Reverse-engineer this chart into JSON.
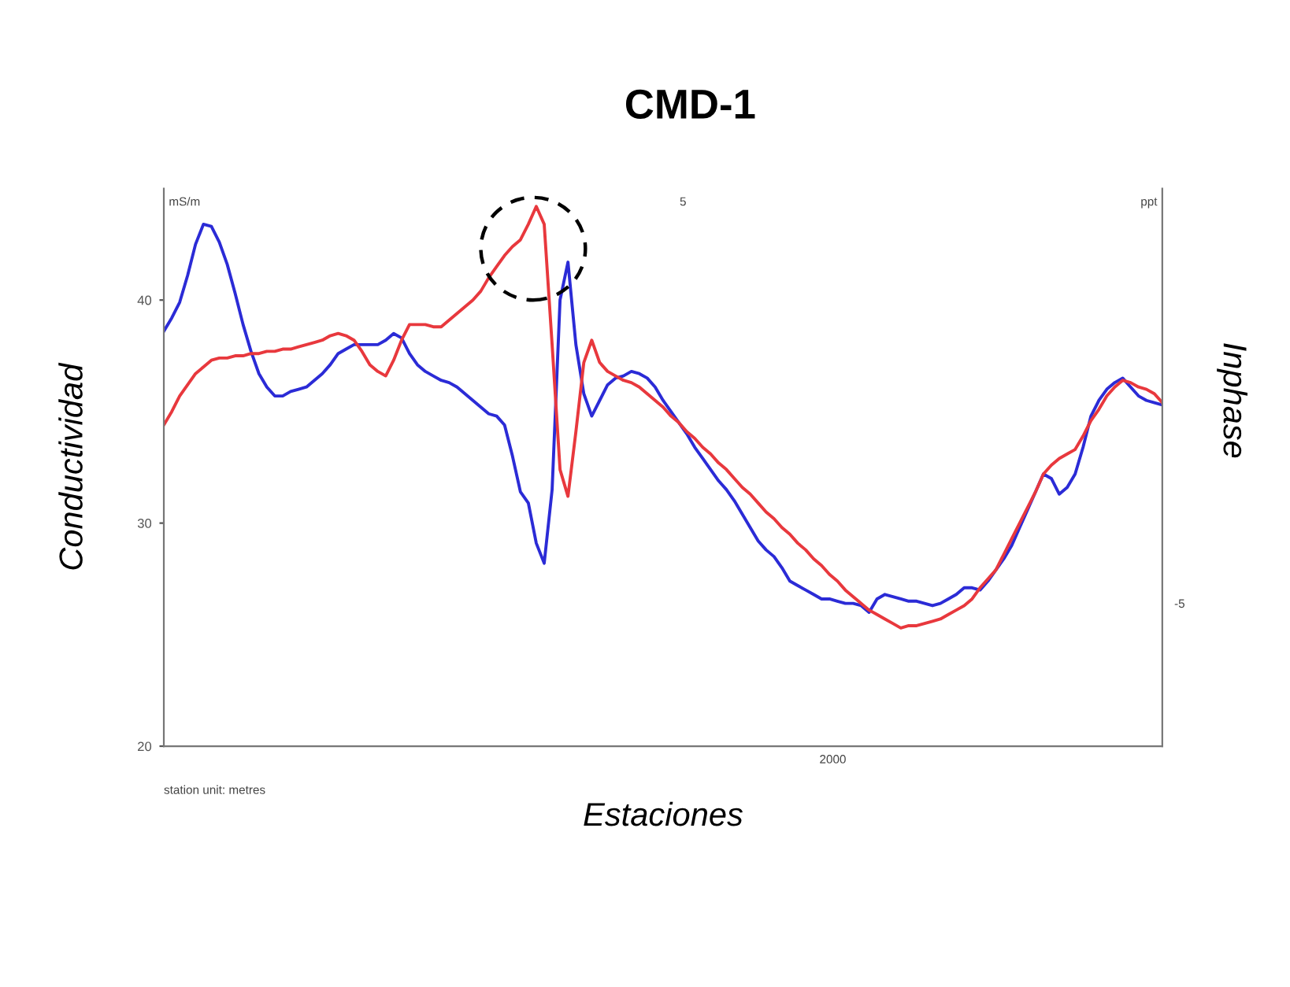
{
  "chart_data": {
    "type": "line",
    "title": "CMD-1",
    "xlabel": "Estaciones",
    "ylabel": "Conductividad",
    "y2label": "Inphase",
    "annotations": [
      "mS/m",
      "ppt",
      "5",
      "station unit: metres",
      "2000",
      "-5"
    ],
    "categories": [
      null,
      null,
      null,
      null,
      null,
      null,
      null,
      null,
      null,
      null,
      null,
      null,
      null,
      null,
      null,
      null,
      null,
      null,
      null,
      null,
      null,
      null,
      null,
      null,
      null,
      null,
      null,
      null,
      null,
      null,
      null,
      null,
      null,
      null,
      null,
      null,
      null,
      null,
      null,
      null,
      null,
      null,
      null,
      null,
      null,
      null,
      null,
      null,
      null,
      null,
      null,
      null,
      null,
      null,
      null,
      null,
      null,
      null,
      null,
      null,
      null,
      null,
      null,
      null,
      null,
      null,
      null,
      null,
      null,
      null,
      null,
      null,
      null,
      null,
      null,
      null,
      null,
      null,
      null,
      null,
      null,
      null,
      null,
      null,
      null,
      null,
      null,
      null,
      null,
      null,
      null,
      null,
      null,
      null,
      null,
      null,
      null,
      null,
      null,
      null,
      null,
      null,
      null,
      null,
      null,
      null,
      null,
      null,
      null,
      null,
      null,
      null,
      null,
      null,
      null,
      null,
      null,
      null,
      null,
      null,
      null,
      null,
      null,
      null,
      null,
      null,
      null
    ],
    "ylim": [
      20,
      45
    ],
    "yticks": [
      20,
      30,
      40
    ],
    "grid": false,
    "line_style": "solid",
    "series": [
      {
        "color": "#2b2bd6",
        "values": [
          38.6,
          39.2,
          39.9,
          41.1,
          42.5,
          43.4,
          43.3,
          42.6,
          41.6,
          40.3,
          38.9,
          37.7,
          36.7,
          36.1,
          35.7,
          35.7,
          35.9,
          36.0,
          36.1,
          36.4,
          36.7,
          37.1,
          37.6,
          37.8,
          38.0,
          38.0,
          38.0,
          38.0,
          38.2,
          38.5,
          38.3,
          37.6,
          37.1,
          36.8,
          36.6,
          36.4,
          36.3,
          36.1,
          35.8,
          35.5,
          35.2,
          34.9,
          34.8,
          34.4,
          33.0,
          31.4,
          30.9,
          29.1,
          28.2,
          31.5,
          40.0,
          41.7,
          38.0,
          35.8,
          34.8,
          35.5,
          36.2,
          36.5,
          36.6,
          36.8,
          36.7,
          36.5,
          36.1,
          35.5,
          35.0,
          34.5,
          34.0,
          33.4,
          32.9,
          32.4,
          31.9,
          31.5,
          31.0,
          30.4,
          29.8,
          29.2,
          28.8,
          28.5,
          28.0,
          27.4,
          27.2,
          27.0,
          26.8,
          26.6,
          26.6,
          26.5,
          26.4,
          26.4,
          26.3,
          26.0,
          26.6,
          26.8,
          26.7,
          26.6,
          26.5,
          26.5,
          26.4,
          26.3,
          26.4,
          26.6,
          26.8,
          27.1,
          27.1,
          27.0,
          27.4,
          27.9,
          28.4,
          29.0,
          29.8,
          30.6,
          31.4,
          32.2,
          32.0,
          31.3,
          31.6,
          32.2,
          33.4,
          34.8,
          35.5,
          36.0,
          36.3,
          36.5,
          36.1,
          35.7,
          35.5,
          35.4,
          35.3
        ]
      },
      {
        "color": "#e8383d",
        "values": [
          34.4,
          35.0,
          35.7,
          36.2,
          36.7,
          37.0,
          37.3,
          37.4,
          37.4,
          37.5,
          37.5,
          37.6,
          37.6,
          37.7,
          37.7,
          37.8,
          37.8,
          37.9,
          38.0,
          38.1,
          38.2,
          38.4,
          38.5,
          38.4,
          38.2,
          37.7,
          37.1,
          36.8,
          36.6,
          37.3,
          38.2,
          38.9,
          38.9,
          38.9,
          38.8,
          38.8,
          39.1,
          39.4,
          39.7,
          40.0,
          40.4,
          41.0,
          41.5,
          42.0,
          42.4,
          42.7,
          43.4,
          44.2,
          43.4,
          38.0,
          32.4,
          31.2,
          34.1,
          37.2,
          38.2,
          37.2,
          36.8,
          36.6,
          36.4,
          36.3,
          36.1,
          35.8,
          35.5,
          35.2,
          34.8,
          34.5,
          34.1,
          33.8,
          33.4,
          33.1,
          32.7,
          32.4,
          32.0,
          31.6,
          31.3,
          30.9,
          30.5,
          30.2,
          29.8,
          29.5,
          29.1,
          28.8,
          28.4,
          28.1,
          27.7,
          27.4,
          27.0,
          26.7,
          26.4,
          26.1,
          25.9,
          25.7,
          25.5,
          25.3,
          25.4,
          25.4,
          25.5,
          25.6,
          25.7,
          25.9,
          26.1,
          26.3,
          26.6,
          27.1,
          27.5,
          27.9,
          28.6,
          29.3,
          30.0,
          30.7,
          31.4,
          32.2,
          32.6,
          32.9,
          33.1,
          33.3,
          33.9,
          34.6,
          35.1,
          35.7,
          36.1,
          36.4,
          36.3,
          36.1,
          36.0,
          35.8,
          35.4
        ]
      }
    ]
  }
}
